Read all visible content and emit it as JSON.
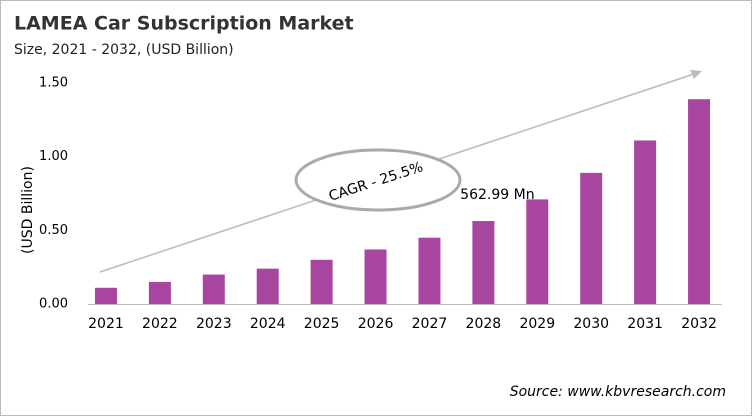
{
  "chart_data": {
    "type": "bar",
    "title": "LAMEA Car Subscription Market",
    "subtitle": "Size, 2021 - 2032, (USD Billion)",
    "y_label": "(USD Billion)",
    "annotation": "CAGR - 25.5%",
    "source": "Source: www.kbvresearch.com",
    "categories": [
      "2021",
      "2022",
      "2023",
      "2024",
      "2025",
      "2026",
      "2027",
      "2028",
      "2029",
      "2030",
      "2031",
      "2032"
    ],
    "values": [
      0.11,
      0.15,
      0.2,
      0.24,
      0.3,
      0.37,
      0.45,
      0.56299,
      0.71,
      0.89,
      1.11,
      1.39
    ],
    "value_labels": [
      null,
      null,
      null,
      null,
      null,
      null,
      null,
      "562.99 Mn",
      null,
      null,
      null,
      null
    ],
    "color": "#a8469f",
    "ylim": [
      0,
      1.5
    ],
    "yticks": [
      {
        "value": 0,
        "label": "0.00"
      },
      {
        "value": 0.5,
        "label": "0.50"
      },
      {
        "value": 1,
        "label": "1.00"
      },
      {
        "value": 1.5,
        "label": "1.50"
      }
    ],
    "grid": false
  }
}
